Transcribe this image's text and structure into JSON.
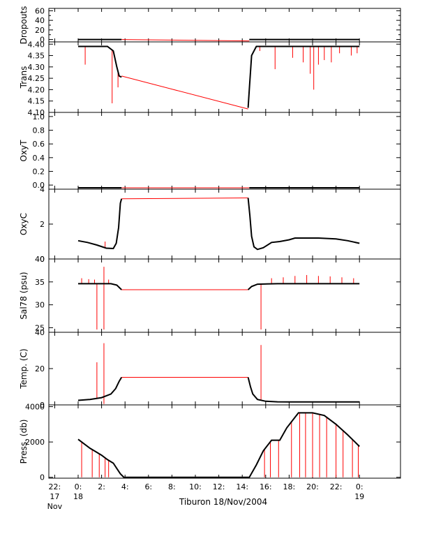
{
  "chart_data": {
    "type": "line",
    "caption": "Tiburon 18/Nov/2004",
    "colors": {
      "raw": "#ff0000",
      "clean": "#000000",
      "axis": "#000000"
    },
    "x_axis": {
      "unit": "hour (relative to 18 Nov 00:00)",
      "range": [
        -2.5,
        27.5
      ],
      "ticks": [
        {
          "value": -2,
          "lines": [
            "22:",
            "17",
            "Nov"
          ]
        },
        {
          "value": 0,
          "lines": [
            "0:",
            "18"
          ]
        },
        {
          "value": 2,
          "lines": [
            "2:"
          ]
        },
        {
          "value": 4,
          "lines": [
            "4:"
          ]
        },
        {
          "value": 6,
          "lines": [
            "6:"
          ]
        },
        {
          "value": 8,
          "lines": [
            "8:"
          ]
        },
        {
          "value": 10,
          "lines": [
            "10:"
          ]
        },
        {
          "value": 12,
          "lines": [
            "12:"
          ]
        },
        {
          "value": 14,
          "lines": [
            "14:"
          ]
        },
        {
          "value": 16,
          "lines": [
            "16:"
          ]
        },
        {
          "value": 18,
          "lines": [
            "18:"
          ]
        },
        {
          "value": 20,
          "lines": [
            "20:"
          ]
        },
        {
          "value": 22,
          "lines": [
            "22:"
          ]
        },
        {
          "value": 24,
          "lines": [
            "0:",
            "19"
          ]
        }
      ]
    },
    "panels": [
      {
        "id": "dropouts",
        "ylabel": "Dropouts",
        "ylim": [
          -5,
          65
        ],
        "yticks": [
          {
            "v": 0,
            "t": "0"
          },
          {
            "v": 20,
            "t": "20"
          },
          {
            "v": 40,
            "t": "40"
          },
          {
            "v": 60,
            "t": "60"
          }
        ],
        "minor": [
          10,
          30,
          50
        ],
        "clean": [
          {
            "x": 0.0,
            "y": 0
          },
          {
            "x": 3.7,
            "y": 0
          },
          {
            "x": 14.6,
            "y": 0
          },
          {
            "x": 24.0,
            "y": 0
          }
        ],
        "raw_gap": [
          {
            "x": 3.7,
            "y": 0
          },
          {
            "x": 14.6,
            "y": -3
          }
        ],
        "spikes": []
      },
      {
        "id": "trans",
        "ylabel": "Trans",
        "ylim": [
          4.1,
          4.41
        ],
        "yticks": [
          {
            "v": 4.1,
            "t": "4.10"
          },
          {
            "v": 4.15,
            "t": "4.15"
          },
          {
            "v": 4.2,
            "t": "4.20"
          },
          {
            "v": 4.25,
            "t": "4.25"
          },
          {
            "v": 4.3,
            "t": "4.30"
          },
          {
            "v": 4.35,
            "t": "4.35"
          },
          {
            "v": 4.4,
            "t": "4.40"
          }
        ],
        "minor": [],
        "clean": [
          {
            "x": 0.0,
            "y": 4.39
          },
          {
            "x": 2.5,
            "y": 4.39
          },
          {
            "x": 3.0,
            "y": 4.37
          },
          {
            "x": 3.3,
            "y": 4.3
          },
          {
            "x": 3.5,
            "y": 4.26
          },
          {
            "x": 3.7,
            "y": 4.255
          },
          {
            "x": 14.5,
            "y": 4.12
          },
          {
            "x": 14.6,
            "y": 4.2
          },
          {
            "x": 14.8,
            "y": 4.35
          },
          {
            "x": 15.2,
            "y": 4.39
          },
          {
            "x": 24.0,
            "y": 4.39
          }
        ],
        "raw_gap": [
          {
            "x": 3.7,
            "y": 4.26
          },
          {
            "x": 14.5,
            "y": 4.115
          }
        ],
        "spikes": [
          {
            "x": 0.6,
            "y": 4.31
          },
          {
            "x": 2.9,
            "y": 4.14
          },
          {
            "x": 3.4,
            "y": 4.21
          },
          {
            "x": 15.5,
            "y": 4.37
          },
          {
            "x": 16.8,
            "y": 4.29
          },
          {
            "x": 18.3,
            "y": 4.34
          },
          {
            "x": 19.2,
            "y": 4.32
          },
          {
            "x": 19.8,
            "y": 4.27
          },
          {
            "x": 20.1,
            "y": 4.2
          },
          {
            "x": 20.5,
            "y": 4.31
          },
          {
            "x": 21.0,
            "y": 4.33
          },
          {
            "x": 21.6,
            "y": 4.32
          },
          {
            "x": 22.3,
            "y": 4.36
          },
          {
            "x": 23.3,
            "y": 4.35
          },
          {
            "x": 23.8,
            "y": 4.36
          }
        ]
      },
      {
        "id": "oxyt",
        "ylabel": "OxyT",
        "ylim": [
          -0.06,
          1.06
        ],
        "yticks": [
          {
            "v": 0.0,
            "t": "0.0"
          },
          {
            "v": 0.2,
            "t": "0.2"
          },
          {
            "v": 0.4,
            "t": "0.4"
          },
          {
            "v": 0.6,
            "t": "0.6"
          },
          {
            "v": 0.8,
            "t": "0.8"
          },
          {
            "v": 1.0,
            "t": "1.0"
          }
        ],
        "minor": [],
        "clean": [
          {
            "x": 0.0,
            "y": -0.04
          },
          {
            "x": 3.7,
            "y": -0.04
          },
          {
            "x": 14.6,
            "y": -0.04
          },
          {
            "x": 24.0,
            "y": -0.04
          }
        ],
        "raw_gap": [
          {
            "x": 3.7,
            "y": -0.04
          },
          {
            "x": 14.6,
            "y": -0.04
          }
        ],
        "spikes": []
      },
      {
        "id": "oxyc",
        "ylabel": "OxyC",
        "ylim": [
          0,
          4
        ],
        "yticks": [
          {
            "v": 0,
            "t": "0"
          },
          {
            "v": 2,
            "t": "2"
          },
          {
            "v": 4,
            "t": "4"
          }
        ],
        "minor": [],
        "clean": [
          {
            "x": 0.0,
            "y": 1.05
          },
          {
            "x": 0.8,
            "y": 0.95
          },
          {
            "x": 1.6,
            "y": 0.8
          },
          {
            "x": 2.4,
            "y": 0.62
          },
          {
            "x": 3.0,
            "y": 0.6
          },
          {
            "x": 3.25,
            "y": 0.9
          },
          {
            "x": 3.45,
            "y": 1.8
          },
          {
            "x": 3.6,
            "y": 3.2
          },
          {
            "x": 3.7,
            "y": 3.45
          },
          {
            "x": 14.5,
            "y": 3.5
          },
          {
            "x": 14.65,
            "y": 2.5
          },
          {
            "x": 14.8,
            "y": 1.3
          },
          {
            "x": 15.0,
            "y": 0.7
          },
          {
            "x": 15.3,
            "y": 0.55
          },
          {
            "x": 15.8,
            "y": 0.65
          },
          {
            "x": 16.5,
            "y": 0.95
          },
          {
            "x": 17.2,
            "y": 1.0
          },
          {
            "x": 18.0,
            "y": 1.1
          },
          {
            "x": 18.5,
            "y": 1.2
          },
          {
            "x": 20.5,
            "y": 1.2
          },
          {
            "x": 22.0,
            "y": 1.15
          },
          {
            "x": 23.0,
            "y": 1.05
          },
          {
            "x": 24.0,
            "y": 0.9
          }
        ],
        "raw_gap": [
          {
            "x": 3.7,
            "y": 3.45
          },
          {
            "x": 14.5,
            "y": 3.5
          }
        ],
        "spikes": [
          {
            "x": 2.3,
            "y": 1.0
          }
        ]
      },
      {
        "id": "sal",
        "ylabel": "Sal78 (psu)",
        "ylim": [
          24,
          40
        ],
        "yticks": [
          {
            "v": 25,
            "t": "25"
          },
          {
            "v": 30,
            "t": "30"
          },
          {
            "v": 35,
            "t": "35"
          },
          {
            "v": 40,
            "t": "40"
          }
        ],
        "minor": [],
        "clean": [
          {
            "x": 0.0,
            "y": 34.6
          },
          {
            "x": 2.8,
            "y": 34.6
          },
          {
            "x": 3.3,
            "y": 34.3
          },
          {
            "x": 3.7,
            "y": 33.3
          },
          {
            "x": 14.5,
            "y": 33.3
          },
          {
            "x": 14.8,
            "y": 34.0
          },
          {
            "x": 15.3,
            "y": 34.5
          },
          {
            "x": 17.0,
            "y": 34.6
          },
          {
            "x": 24.0,
            "y": 34.6
          }
        ],
        "raw_gap": [
          {
            "x": 3.7,
            "y": 33.3
          },
          {
            "x": 14.5,
            "y": 33.3
          }
        ],
        "spikes": [
          {
            "x": 1.6,
            "y": 24.6
          },
          {
            "x": 2.2,
            "y": 38.3
          },
          {
            "x": 2.2,
            "y": 24.6
          },
          {
            "x": 15.6,
            "y": 24.6
          },
          {
            "x": 0.3,
            "y": 35.8
          },
          {
            "x": 0.9,
            "y": 35.6
          },
          {
            "x": 1.4,
            "y": 35.5
          },
          {
            "x": 2.6,
            "y": 35.5
          },
          {
            "x": 16.5,
            "y": 35.8
          },
          {
            "x": 17.5,
            "y": 36.0
          },
          {
            "x": 18.5,
            "y": 36.3
          },
          {
            "x": 19.5,
            "y": 36.5
          },
          {
            "x": 20.5,
            "y": 36.3
          },
          {
            "x": 21.5,
            "y": 36.2
          },
          {
            "x": 22.5,
            "y": 36.0
          },
          {
            "x": 23.5,
            "y": 35.8
          }
        ]
      },
      {
        "id": "temp",
        "ylabel": "Temp. (C)",
        "ylim": [
          0,
          40
        ],
        "yticks": [
          {
            "v": 0,
            "t": "0"
          },
          {
            "v": 20,
            "t": "20"
          },
          {
            "v": 40,
            "t": "40"
          }
        ],
        "minor": [],
        "clean": [
          {
            "x": 0.0,
            "y": 2.5
          },
          {
            "x": 1.0,
            "y": 3.0
          },
          {
            "x": 2.0,
            "y": 4.0
          },
          {
            "x": 2.8,
            "y": 6.0
          },
          {
            "x": 3.2,
            "y": 9.0
          },
          {
            "x": 3.5,
            "y": 13.0
          },
          {
            "x": 3.7,
            "y": 15.2
          },
          {
            "x": 14.5,
            "y": 15.2
          },
          {
            "x": 14.7,
            "y": 10.0
          },
          {
            "x": 14.9,
            "y": 6.0
          },
          {
            "x": 15.3,
            "y": 3.0
          },
          {
            "x": 16.0,
            "y": 2.0
          },
          {
            "x": 17.0,
            "y": 1.7
          },
          {
            "x": 18.0,
            "y": 1.6
          },
          {
            "x": 24.0,
            "y": 1.6
          }
        ],
        "raw_gap": [
          {
            "x": 3.7,
            "y": 15.2
          },
          {
            "x": 14.5,
            "y": 15.2
          }
        ],
        "spikes": [
          {
            "x": 1.6,
            "y": 23.5
          },
          {
            "x": 2.2,
            "y": 34.0
          },
          {
            "x": 2.2,
            "y": 0.5
          },
          {
            "x": 15.6,
            "y": 33.0
          }
        ]
      },
      {
        "id": "press",
        "ylabel": "Press. (db)",
        "ylim": [
          -50,
          4100
        ],
        "yticks": [
          {
            "v": 0,
            "t": "0"
          },
          {
            "v": 2000,
            "t": "2000"
          },
          {
            "v": 4000,
            "t": "4000"
          }
        ],
        "minor": [],
        "clean": [
          {
            "x": 0.0,
            "y": 2150
          },
          {
            "x": 0.5,
            "y": 1900
          },
          {
            "x": 1.0,
            "y": 1650
          },
          {
            "x": 1.5,
            "y": 1450
          },
          {
            "x": 2.0,
            "y": 1250
          },
          {
            "x": 2.5,
            "y": 1000
          },
          {
            "x": 3.0,
            "y": 800
          },
          {
            "x": 3.3,
            "y": 500
          },
          {
            "x": 3.6,
            "y": 200
          },
          {
            "x": 3.9,
            "y": 0
          },
          {
            "x": 14.6,
            "y": 0
          },
          {
            "x": 15.2,
            "y": 700
          },
          {
            "x": 15.8,
            "y": 1500
          },
          {
            "x": 16.5,
            "y": 2100
          },
          {
            "x": 17.2,
            "y": 2100
          },
          {
            "x": 17.8,
            "y": 2800
          },
          {
            "x": 18.5,
            "y": 3400
          },
          {
            "x": 18.8,
            "y": 3650
          },
          {
            "x": 20.0,
            "y": 3650
          },
          {
            "x": 21.0,
            "y": 3500
          },
          {
            "x": 22.0,
            "y": 3000
          },
          {
            "x": 23.0,
            "y": 2400
          },
          {
            "x": 24.0,
            "y": 1750
          }
        ],
        "raw_gap": [],
        "spikes": [
          {
            "x": 0.3,
            "y": 0
          },
          {
            "x": 1.2,
            "y": 0
          },
          {
            "x": 1.8,
            "y": 0
          },
          {
            "x": 2.3,
            "y": 0
          },
          {
            "x": 2.6,
            "y": 0
          },
          {
            "x": 15.9,
            "y": 0
          },
          {
            "x": 16.4,
            "y": 0
          },
          {
            "x": 17.1,
            "y": 0
          },
          {
            "x": 18.2,
            "y": 0
          },
          {
            "x": 18.9,
            "y": 0
          },
          {
            "x": 19.4,
            "y": 0
          },
          {
            "x": 20.0,
            "y": 0
          },
          {
            "x": 20.6,
            "y": 0
          },
          {
            "x": 21.2,
            "y": 0
          },
          {
            "x": 22.0,
            "y": 0
          },
          {
            "x": 22.6,
            "y": 0
          },
          {
            "x": 23.4,
            "y": 0
          },
          {
            "x": 23.9,
            "y": 0
          }
        ]
      }
    ]
  }
}
